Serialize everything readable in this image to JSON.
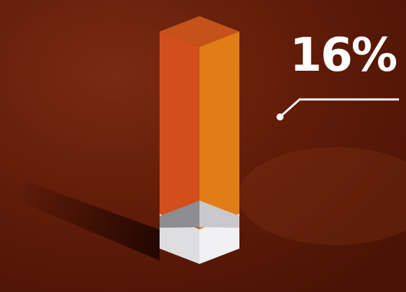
{
  "chart_data": {
    "type": "bar",
    "categories": [
      ""
    ],
    "values": [
      16
    ],
    "ylim": [
      0,
      100
    ],
    "value_label": "16%",
    "bar_style": "isometric-3d",
    "colors": {
      "filled_left": "#d24e1c",
      "filled_right": "#e07d17",
      "top": "#c4521a",
      "empty_left": "#dedde0",
      "empty_right": "#f1f0f2",
      "background": "#5a1606"
    }
  }
}
